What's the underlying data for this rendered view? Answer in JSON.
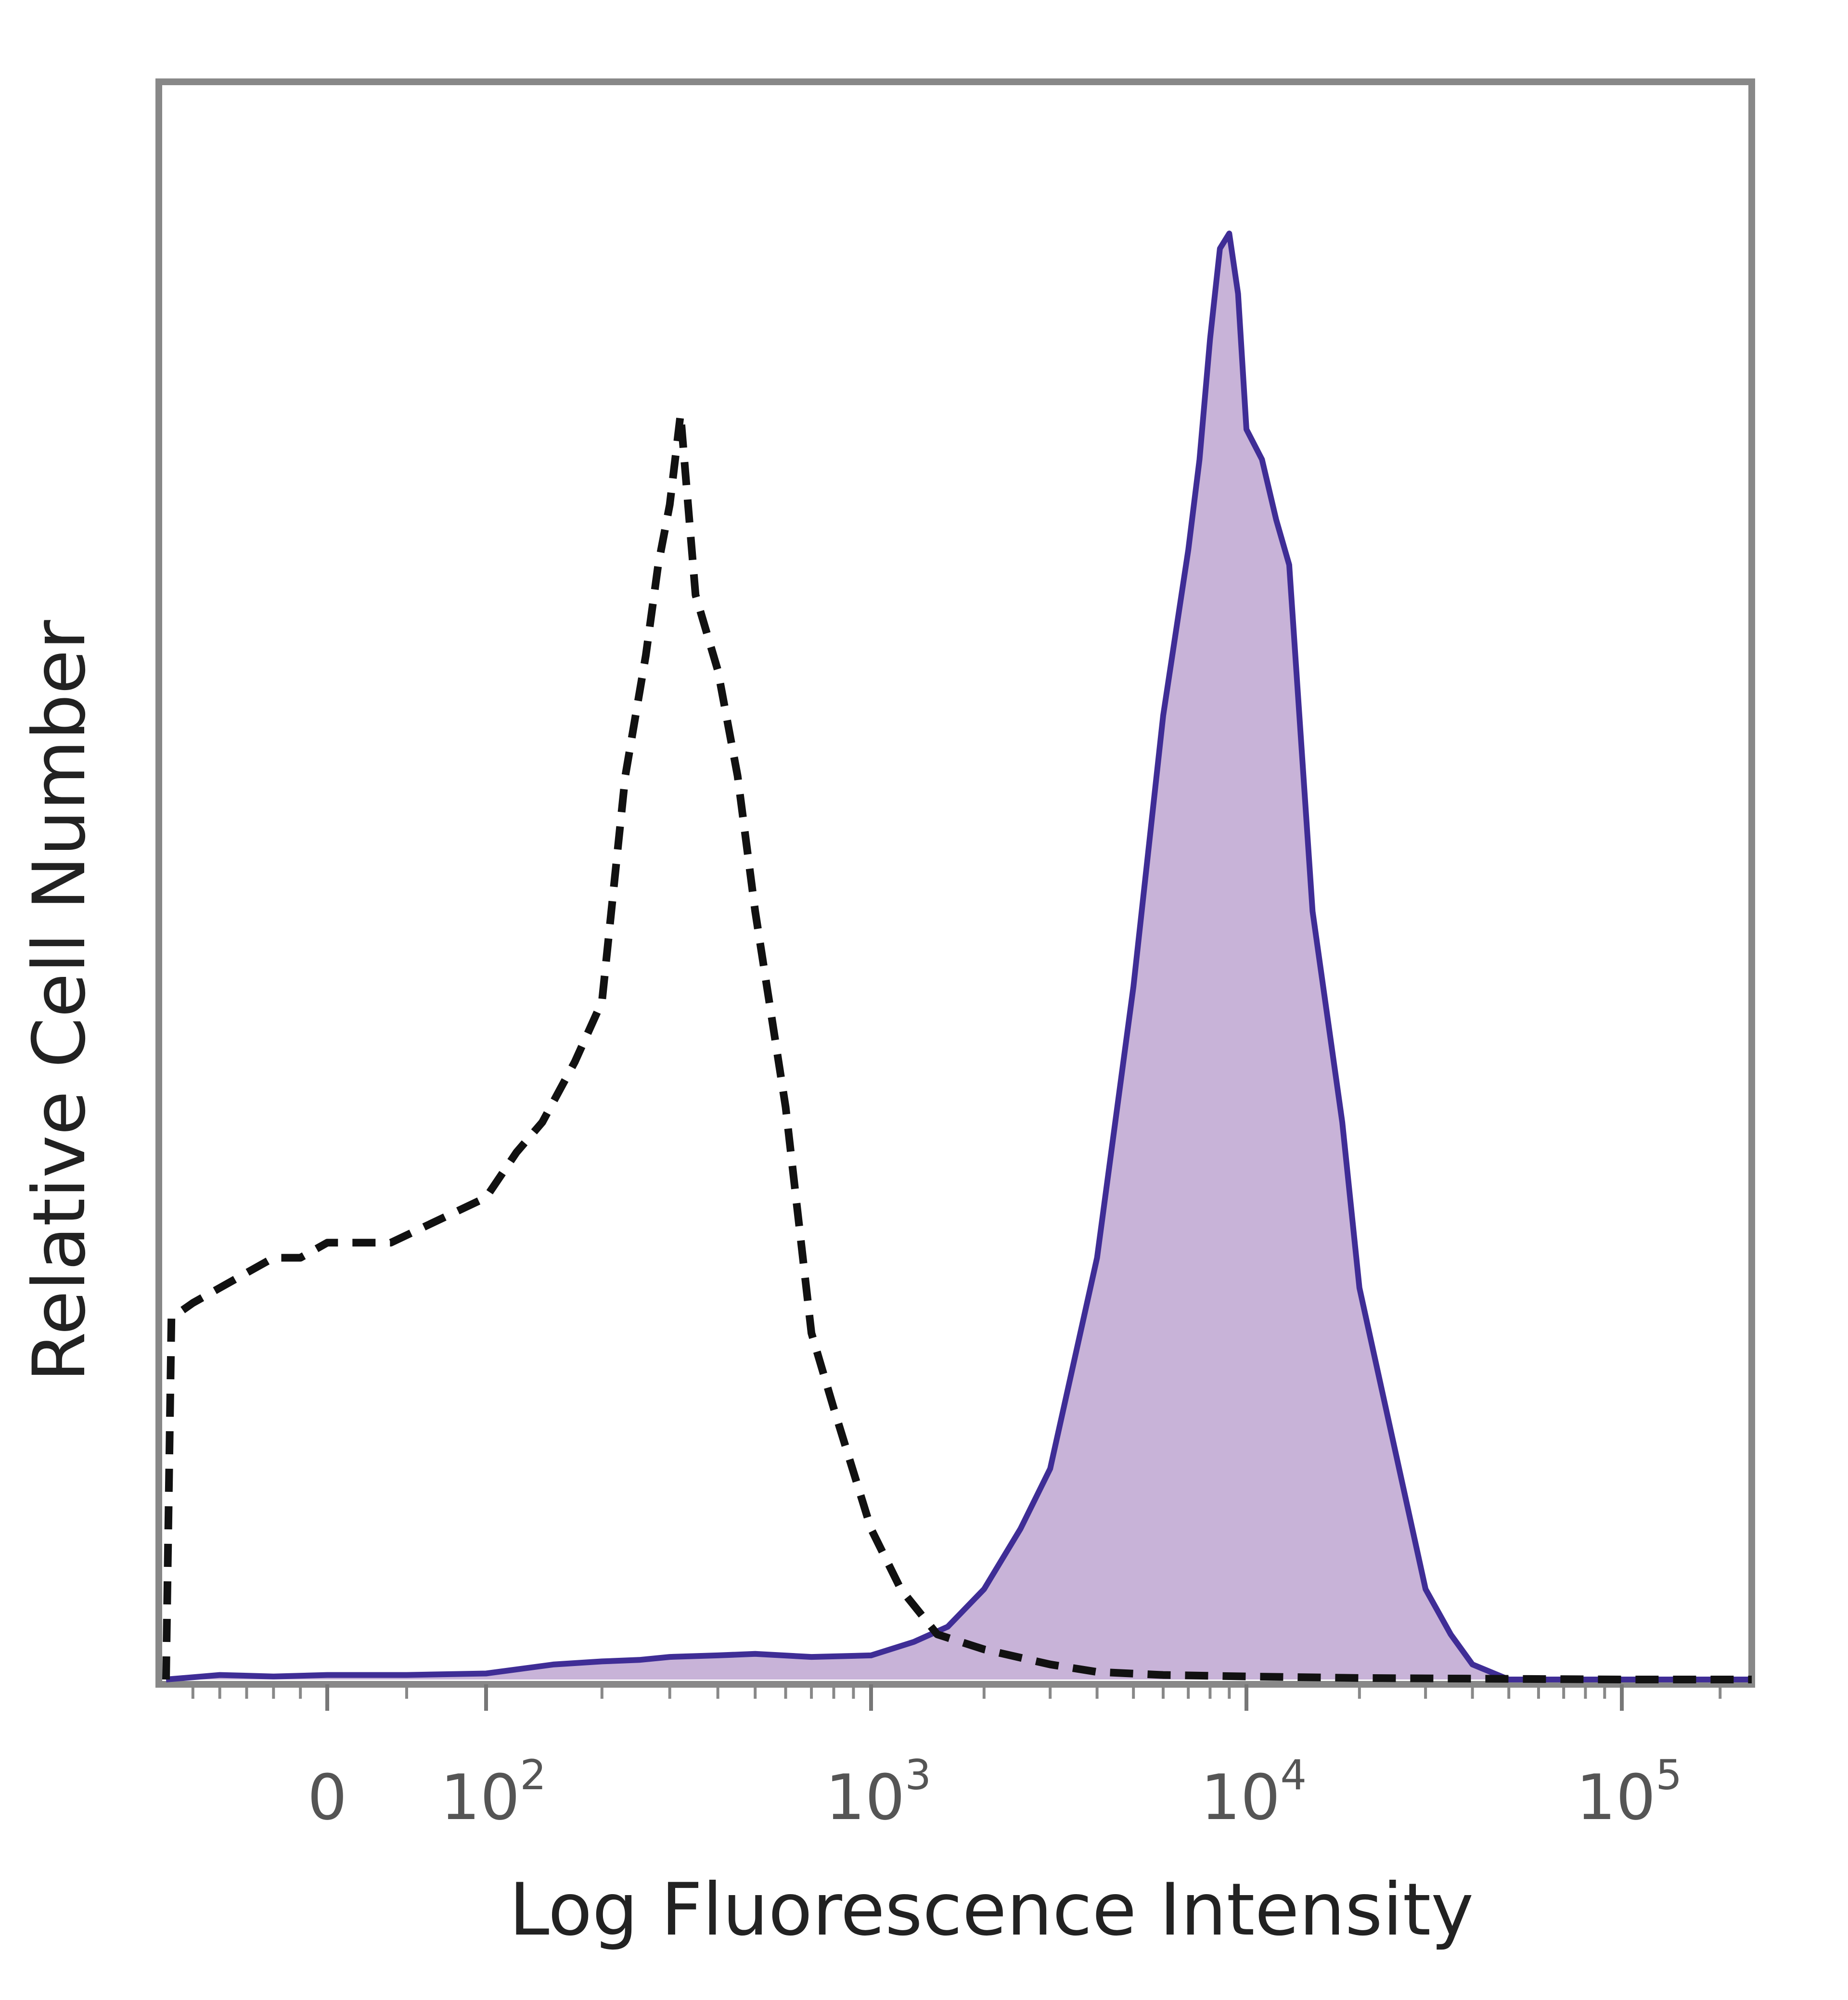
{
  "chart_data": {
    "type": "area",
    "title": "",
    "xlabel": "Log Fluorescence Intensity",
    "ylabel": "Relative Cell Number",
    "x_scale": "biexponential",
    "xlim": [
      -300,
      250000
    ],
    "ylim": [
      0,
      100
    ],
    "grid": false,
    "legend": "none",
    "x_ticks": [
      {
        "value": 0,
        "base": "0",
        "exp": ""
      },
      {
        "value": 100,
        "base": "10",
        "exp": "2"
      },
      {
        "value": 1000,
        "base": "10",
        "exp": "3"
      },
      {
        "value": 10000,
        "base": "10",
        "exp": "4"
      },
      {
        "value": 100000,
        "base": "10",
        "exp": "5"
      }
    ],
    "series": [
      {
        "style": "dashed",
        "color": "#111111",
        "points": [
          [
            -300,
            0
          ],
          [
            -290,
            24
          ],
          [
            -250,
            25
          ],
          [
            -200,
            26
          ],
          [
            -150,
            27
          ],
          [
            -100,
            28
          ],
          [
            -50,
            28
          ],
          [
            0,
            29
          ],
          [
            20,
            29
          ],
          [
            40,
            29
          ],
          [
            60,
            30
          ],
          [
            80,
            31
          ],
          [
            100,
            32
          ],
          [
            120,
            35
          ],
          [
            140,
            37
          ],
          [
            170,
            41
          ],
          [
            200,
            45
          ],
          [
            230,
            60
          ],
          [
            260,
            68
          ],
          [
            280,
            74
          ],
          [
            300,
            78
          ],
          [
            320,
            84
          ],
          [
            350,
            72
          ],
          [
            400,
            67
          ],
          [
            450,
            60
          ],
          [
            500,
            51
          ],
          [
            600,
            38
          ],
          [
            700,
            23
          ],
          [
            800,
            18
          ],
          [
            1000,
            10
          ],
          [
            1200,
            6
          ],
          [
            1500,
            3
          ],
          [
            2000,
            2
          ],
          [
            3000,
            1
          ],
          [
            4000,
            0.5
          ],
          [
            6000,
            0.3
          ],
          [
            10000,
            0.2
          ],
          [
            20000,
            0.1
          ],
          [
            100000,
            0
          ],
          [
            250000,
            0
          ]
        ]
      },
      {
        "style": "solid-filled",
        "color": "#3f2d96",
        "fill": "#c8b3d8",
        "points": [
          [
            -300,
            0
          ],
          [
            -200,
            0.3
          ],
          [
            -100,
            0.2
          ],
          [
            0,
            0.3
          ],
          [
            50,
            0.3
          ],
          [
            100,
            0.4
          ],
          [
            150,
            1.0
          ],
          [
            200,
            1.2
          ],
          [
            250,
            1.3
          ],
          [
            300,
            1.5
          ],
          [
            400,
            1.6
          ],
          [
            500,
            1.7
          ],
          [
            700,
            1.5
          ],
          [
            1000,
            1.6
          ],
          [
            1300,
            2.5
          ],
          [
            1600,
            3.5
          ],
          [
            2000,
            6
          ],
          [
            2500,
            10
          ],
          [
            3000,
            14
          ],
          [
            4000,
            28
          ],
          [
            5000,
            46
          ],
          [
            6000,
            64
          ],
          [
            7000,
            75
          ],
          [
            7500,
            81
          ],
          [
            8000,
            89
          ],
          [
            8500,
            95
          ],
          [
            9000,
            96
          ],
          [
            9500,
            92
          ],
          [
            10000,
            83
          ],
          [
            11000,
            81
          ],
          [
            12000,
            77
          ],
          [
            13000,
            74
          ],
          [
            15000,
            51
          ],
          [
            18000,
            37
          ],
          [
            20000,
            26
          ],
          [
            25000,
            15
          ],
          [
            30000,
            6
          ],
          [
            35000,
            3
          ],
          [
            40000,
            1
          ],
          [
            50000,
            0
          ],
          [
            250000,
            0
          ]
        ]
      }
    ]
  }
}
